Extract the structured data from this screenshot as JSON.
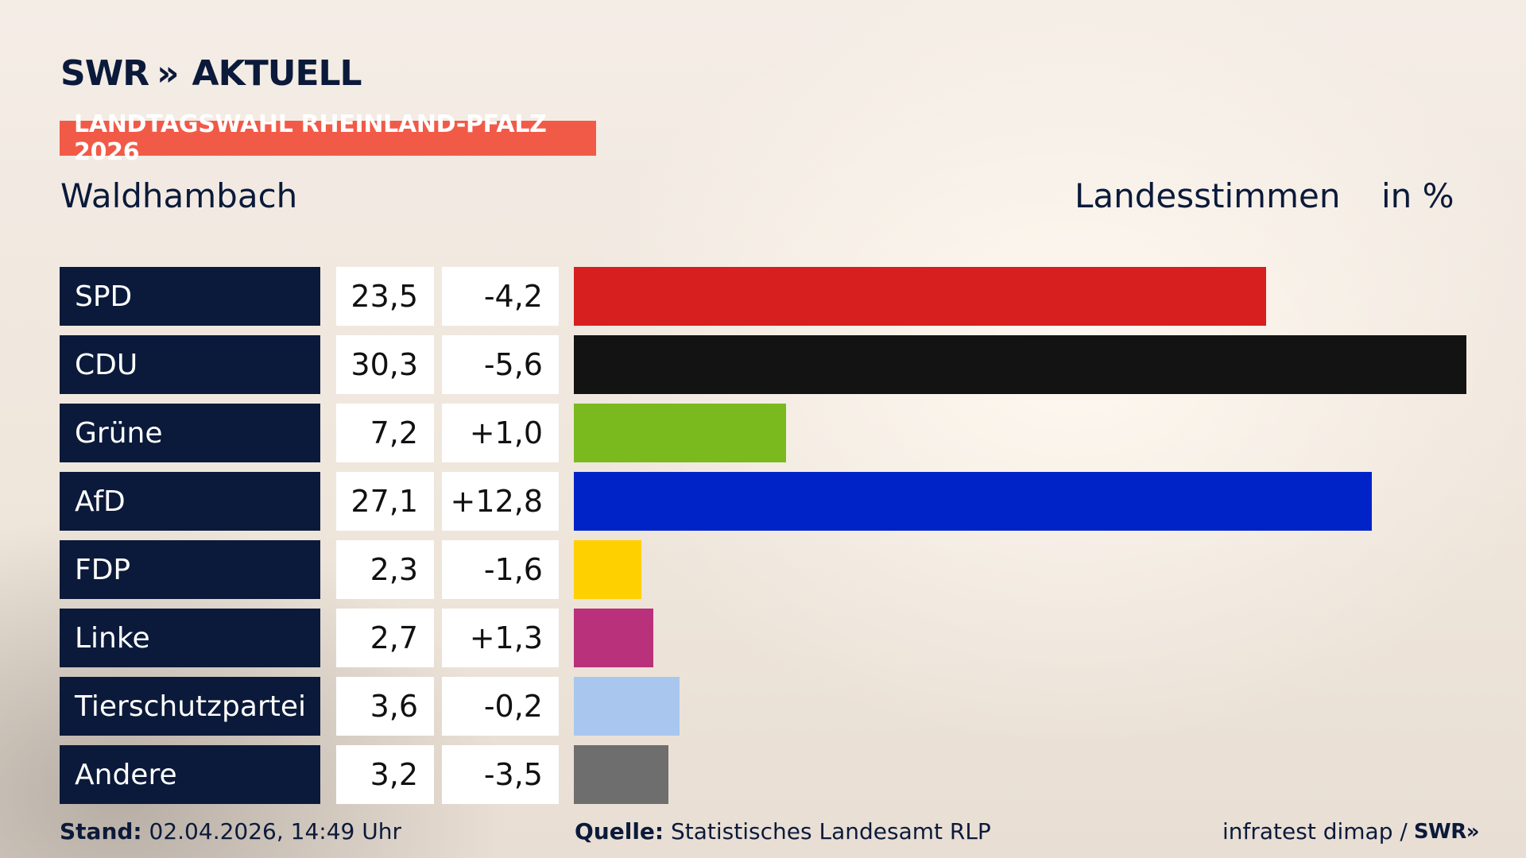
{
  "logo": {
    "brand": "SWR",
    "chevrons": "»",
    "name": "AKTUELL"
  },
  "badge": "LANDTAGSWAHL RHEINLAND-PFALZ 2026",
  "region": "Waldhambach",
  "measure": "Landesstimmen",
  "unit": "in %",
  "chart_data": {
    "type": "bar",
    "orientation": "horizontal",
    "categories": [
      "SPD",
      "CDU",
      "Grüne",
      "AfD",
      "FDP",
      "Linke",
      "Tierschutzpartei",
      "Andere"
    ],
    "values": [
      23.5,
      30.3,
      7.2,
      27.1,
      2.3,
      2.7,
      3.6,
      3.2
    ],
    "value_labels": [
      "23,5",
      "30,3",
      "7,2",
      "27,1",
      "2,3",
      "2,7",
      "3,6",
      "3,2"
    ],
    "change_labels": [
      "-4,2",
      "-5,6",
      "+1,0",
      "+12,8",
      "-1,6",
      "+1,3",
      "-0,2",
      "-3,5"
    ],
    "colors": [
      "#d71f1f",
      "#131313",
      "#7aba1e",
      "#0023c8",
      "#ffd000",
      "#b8317a",
      "#a9c7ee",
      "#6e6e6e"
    ],
    "xlim": [
      0,
      30.3
    ]
  },
  "footer": {
    "stand_label": "Stand:",
    "stand_value": "02.04.2026, 14:49 Uhr",
    "source_label": "Quelle:",
    "source_value": "Statistisches Landesamt RLP",
    "credit": "infratest dimap /",
    "credit_brand": "SWR»"
  }
}
